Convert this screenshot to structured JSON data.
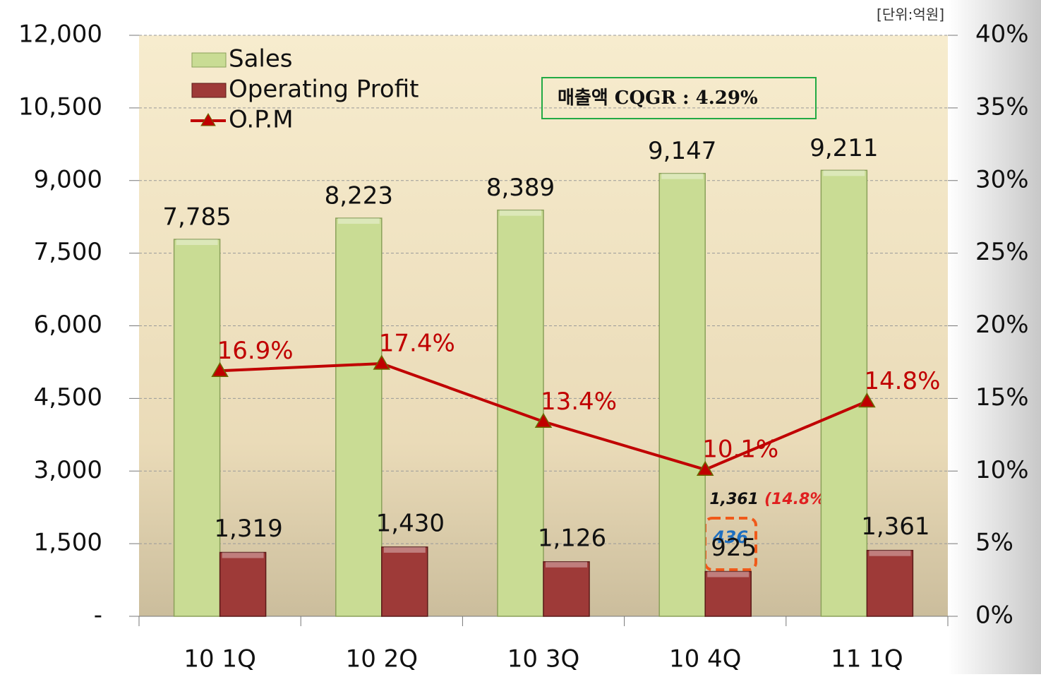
{
  "chart_data": {
    "type": "bar",
    "unit_note": "[단위:억원]",
    "categories": [
      "10 1Q",
      "10 2Q",
      "10 3Q",
      "10 4Q",
      "11 1Q"
    ],
    "series": [
      {
        "name": "Sales",
        "color": "#c9dc94",
        "values": [
          7785,
          8223,
          8389,
          9147,
          9211
        ],
        "value_labels": [
          "7,785",
          "8,223",
          "8,389",
          "9,147",
          "9,211"
        ]
      },
      {
        "name": "Operating Profit",
        "color": "#9e3a38",
        "values": [
          1319,
          1430,
          1126,
          925,
          1361
        ],
        "value_labels": [
          "1,319",
          "1,430",
          "1,126",
          "925",
          "1,361"
        ]
      },
      {
        "name": "O.P.M",
        "type": "line",
        "axis": "y2",
        "color": "#c00000",
        "values": [
          16.9,
          17.4,
          13.4,
          10.1,
          14.8
        ],
        "value_labels": [
          "16.9%",
          "17.4%",
          "13.4%",
          "10.1%",
          "14.8%"
        ]
      }
    ],
    "ylim": [
      0,
      12000
    ],
    "yticks": [
      {
        "value": 0,
        "label": "-"
      },
      {
        "value": 1500,
        "label": "1,500"
      },
      {
        "value": 3000,
        "label": "3,000"
      },
      {
        "value": 4500,
        "label": "4,500"
      },
      {
        "value": 6000,
        "label": "6,000"
      },
      {
        "value": 7500,
        "label": "7,500"
      },
      {
        "value": 9000,
        "label": "9,000"
      },
      {
        "value": 10500,
        "label": "10,500"
      },
      {
        "value": 12000,
        "label": "12,000"
      }
    ],
    "y2lim": [
      0,
      40
    ],
    "y2ticks": [
      {
        "value": 0,
        "label": "0%"
      },
      {
        "value": 5,
        "label": "5%"
      },
      {
        "value": 10,
        "label": "10%"
      },
      {
        "value": 15,
        "label": "15%"
      },
      {
        "value": 20,
        "label": "20%"
      },
      {
        "value": 25,
        "label": "25%"
      },
      {
        "value": 30,
        "label": "30%"
      },
      {
        "value": 35,
        "label": "35%"
      },
      {
        "value": 40,
        "label": "40%"
      }
    ],
    "grid": true,
    "legend": "top-left",
    "annotations": {
      "cagr": "매출액 CQGR : 4.29%",
      "alt_profit": "1,361",
      "alt_opm": "(14.8%)",
      "adjusted": "436"
    }
  }
}
